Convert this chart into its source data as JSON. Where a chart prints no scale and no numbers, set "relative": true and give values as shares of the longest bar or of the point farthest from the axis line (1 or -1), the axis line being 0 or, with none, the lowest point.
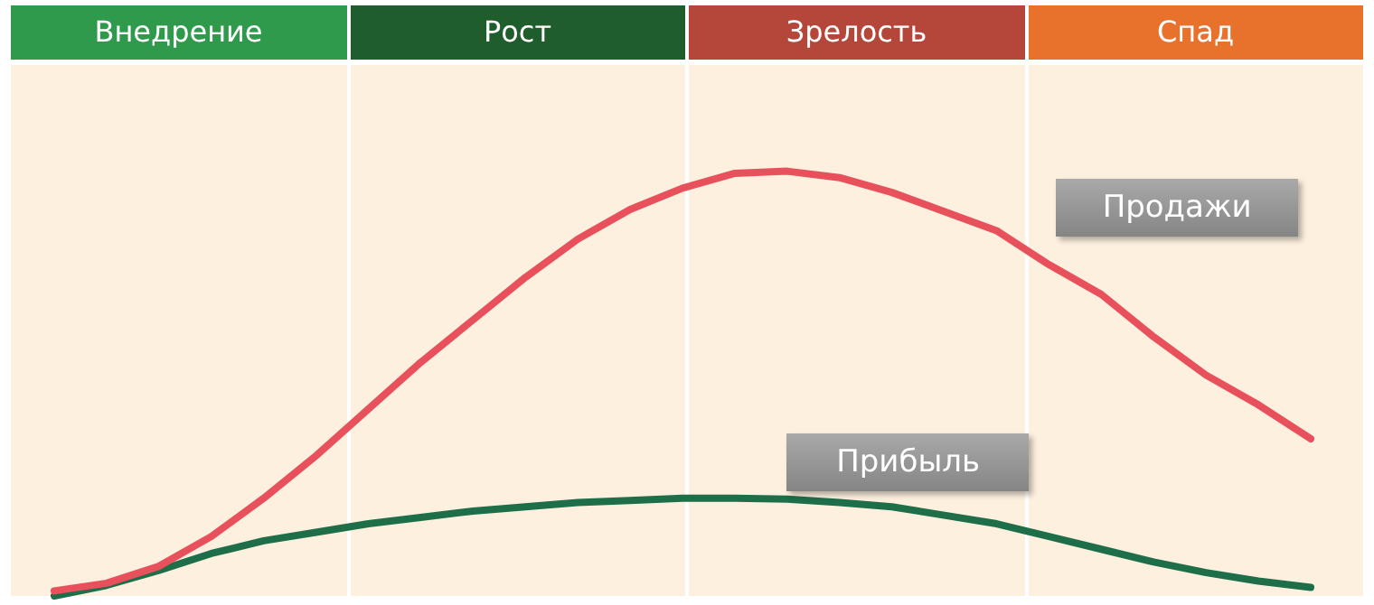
{
  "chart_data": {
    "type": "line",
    "relative": true,
    "categories": [
      null,
      null,
      null,
      null,
      null,
      null,
      null,
      null,
      null,
      null,
      null,
      null,
      null,
      null,
      null,
      null,
      null,
      null,
      null,
      null,
      null,
      null,
      null,
      null,
      null
    ],
    "tick_labels": false,
    "grid": false,
    "legend": false,
    "marker": "none",
    "series": [
      {
        "name": "Продажи",
        "color": "#e8505b",
        "values": [
          0.012,
          0.03,
          0.07,
          0.14,
          0.23,
          0.33,
          0.44,
          0.55,
          0.65,
          0.75,
          0.84,
          0.91,
          0.96,
          0.995,
          1.0,
          0.985,
          0.95,
          0.905,
          0.86,
          0.78,
          0.71,
          0.61,
          0.52,
          0.45,
          0.37
        ]
      },
      {
        "name": "Прибыль",
        "color": "#1e6e4a",
        "values": [
          0,
          0.025,
          0.06,
          0.1,
          0.13,
          0.15,
          0.17,
          0.185,
          0.2,
          0.21,
          0.22,
          0.225,
          0.23,
          0.23,
          0.228,
          0.22,
          0.21,
          0.19,
          0.17,
          0.14,
          0.11,
          0.08,
          0.055,
          0.035,
          0.02
        ]
      }
    ],
    "annotations": [
      "Внедрение",
      "Рост",
      "Зрелость",
      "Спад"
    ]
  }
}
